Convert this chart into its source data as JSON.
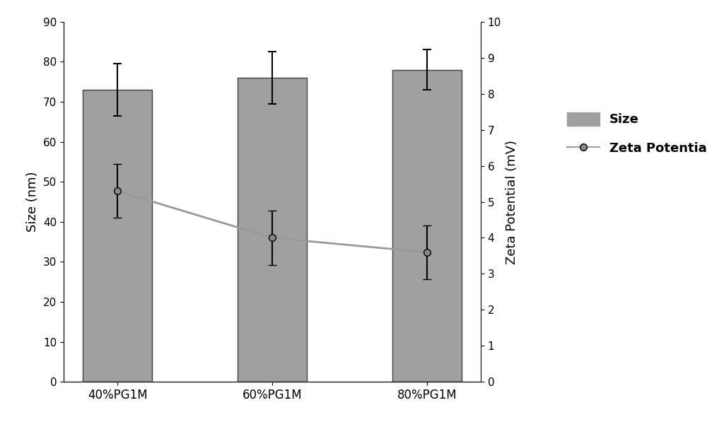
{
  "categories": [
    "40%PG1M",
    "60%PG1M",
    "80%PG1M"
  ],
  "bar_values": [
    73,
    76,
    78
  ],
  "bar_errors": [
    6.5,
    6.5,
    5.0
  ],
  "bar_color": "#a0a0a0",
  "bar_edgecolor": "#404040",
  "zeta_values": [
    5.3,
    4.0,
    3.6
  ],
  "zeta_errors": [
    0.75,
    0.75,
    0.75
  ],
  "zeta_color": "#999999",
  "zeta_marker": "o",
  "zeta_markercolor": "#888888",
  "ylabel_left": "Size (nm)",
  "ylabel_right": "Zeta Potential (mV)",
  "ylim_left": [
    0,
    90
  ],
  "ylim_right": [
    0,
    10
  ],
  "yticks_left": [
    0,
    10,
    20,
    30,
    40,
    50,
    60,
    70,
    80,
    90
  ],
  "yticks_right": [
    0,
    1,
    2,
    3,
    4,
    5,
    6,
    7,
    8,
    9,
    10
  ],
  "legend_size_label": "Size",
  "legend_zeta_label": "Zeta Potential",
  "bar_width": 0.45,
  "figsize": [
    10.0,
    6.14
  ],
  "dpi": 100
}
